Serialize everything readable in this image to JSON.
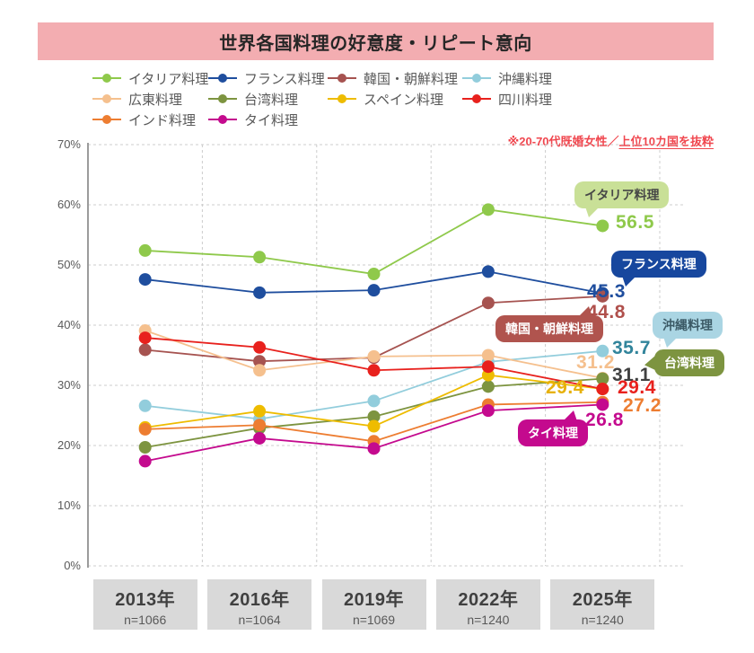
{
  "title": "世界各国料理の好意度・リピート意向",
  "note": {
    "prefix": "※20-70代既婚女性／",
    "underlined": "上位10カ国を抜粋"
  },
  "chart_data": {
    "type": "line",
    "title": "世界各国料理の好意度・リピート意向",
    "categories": [
      "2013年",
      "2016年",
      "2019年",
      "2022年",
      "2025年"
    ],
    "sample_sizes": [
      "n=1066",
      "n=1064",
      "n=1069",
      "n=1240",
      "n=1240"
    ],
    "ylim": [
      0,
      70
    ],
    "ytick_step": 10,
    "ytick_suffix": "%",
    "ytick_labels": [
      "0%",
      "10%",
      "20%",
      "30%",
      "40%",
      "50%",
      "60%",
      "70%"
    ],
    "grid": "dashed horizontal and vertical gridlines",
    "legend_position": "top",
    "series": [
      {
        "name": "イタリア料理",
        "color": "#8fc94b",
        "label_color": "#8fc94b",
        "values": [
          52.4,
          51.3,
          48.5,
          59.2,
          56.5
        ],
        "final_label": "56.5"
      },
      {
        "name": "フランス料理",
        "color": "#1f4e9e",
        "label_color": "#1f4e9e",
        "values": [
          47.6,
          45.4,
          45.8,
          48.9,
          45.3
        ],
        "final_label": "45.3"
      },
      {
        "name": "韓国・朝鮮料理",
        "color": "#a65350",
        "label_color": "#b0504c",
        "values": [
          35.9,
          34.0,
          34.6,
          43.7,
          44.8
        ],
        "final_label": "44.8"
      },
      {
        "name": "沖縄料理",
        "color": "#92cddc",
        "label_color": "#31849b",
        "values": [
          26.6,
          24.4,
          27.4,
          33.9,
          35.7
        ],
        "final_label": "35.7"
      },
      {
        "name": "広東料理",
        "color": "#f5c08e",
        "label_color": "#f5c08e",
        "values": [
          39.1,
          32.5,
          34.8,
          35.0,
          31.2
        ],
        "final_label": "31.2"
      },
      {
        "name": "台湾料理",
        "color": "#7d9440",
        "label_color": "#404040",
        "values": [
          19.7,
          22.9,
          24.8,
          29.8,
          31.1
        ],
        "final_label": "31.1"
      },
      {
        "name": "スペイン料理",
        "color": "#eebc00",
        "label_color": "#e7b10a",
        "values": [
          23.0,
          25.7,
          23.2,
          31.7,
          29.4
        ],
        "final_label": "29.4"
      },
      {
        "name": "四川料理",
        "color": "#e8211d",
        "label_color": "#e8211d",
        "values": [
          37.9,
          36.3,
          32.5,
          33.1,
          29.4
        ],
        "final_label": "29.4"
      },
      {
        "name": "インド料理",
        "color": "#ed7d31",
        "label_color": "#ed7d31",
        "values": [
          22.7,
          23.4,
          20.7,
          26.8,
          27.2
        ],
        "final_label": "27.2"
      },
      {
        "name": "タイ料理",
        "color": "#c40a8e",
        "label_color": "#c40a8e",
        "values": [
          17.4,
          21.2,
          19.5,
          25.8,
          26.8
        ],
        "final_label": "26.8"
      }
    ],
    "callout_bubbles": [
      {
        "label": "イタリア料理",
        "bg": "#c9e097",
        "fg": "#474747"
      },
      {
        "label": "フランス料理",
        "bg": "#17479e",
        "fg": "#ffffff"
      },
      {
        "label": "韓国・朝鮮料理",
        "bg": "#b0544e",
        "fg": "#ffffff"
      },
      {
        "label": "沖縄料理",
        "bg": "#aad5e3",
        "fg": "#3c5a66"
      },
      {
        "label": "台湾料理",
        "bg": "#7d9440",
        "fg": "#ffffff"
      },
      {
        "label": "タイ料理",
        "bg": "#c40a8e",
        "fg": "#ffffff"
      }
    ]
  }
}
